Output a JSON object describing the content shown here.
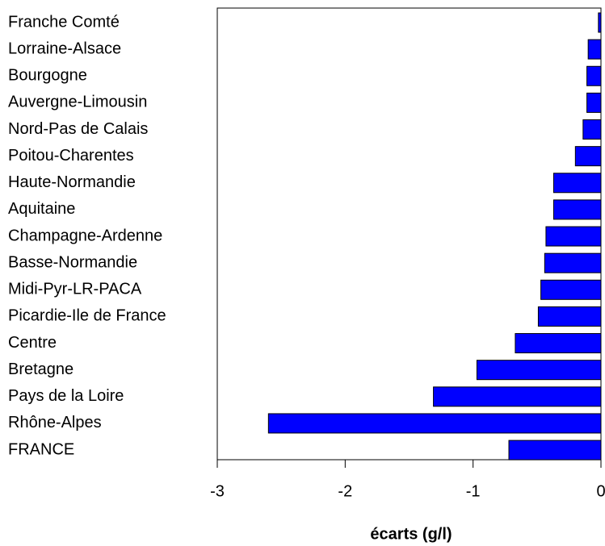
{
  "chart_data": {
    "type": "barh",
    "categories": [
      "Franche Comté",
      "Lorraine-Alsace",
      "Bourgogne",
      "Auvergne-Limousin",
      "Nord-Pas de Calais",
      "Poitou-Charentes",
      "Haute-Normandie",
      "Aquitaine",
      "Champagne-Ardenne",
      "Basse-Normandie",
      "Midi-Pyr-LR-PACA",
      "Picardie-Ile de France",
      "Centre",
      "Bretagne",
      "Pays de la Loire",
      "Rhône-Alpes",
      "FRANCE"
    ],
    "values": [
      -0.02,
      -0.1,
      -0.11,
      -0.11,
      -0.14,
      -0.2,
      -0.37,
      -0.37,
      -0.43,
      -0.44,
      -0.47,
      -0.49,
      -0.67,
      -0.97,
      -1.31,
      -2.6,
      -0.72
    ],
    "color": "#0000ff",
    "xlabel": "écarts (g/l)",
    "xlim": [
      -3,
      0
    ],
    "xticks": [
      -3,
      -2,
      -1,
      0
    ]
  }
}
